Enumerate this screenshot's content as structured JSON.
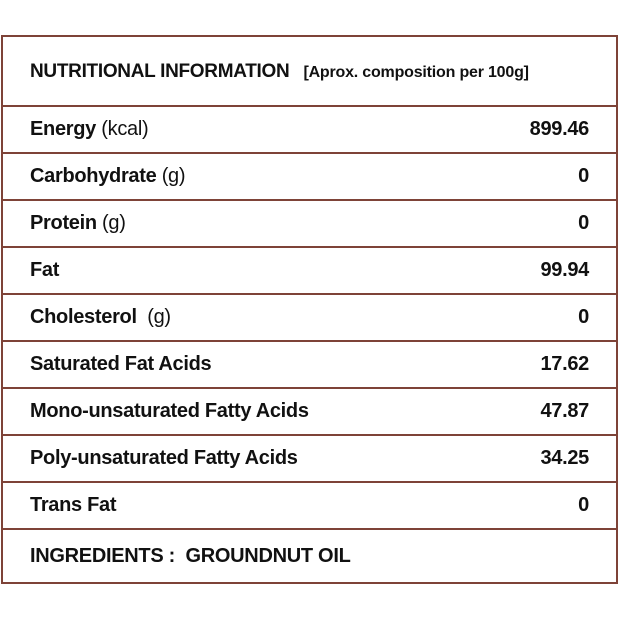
{
  "header": {
    "title": "NUTRITIONAL INFORMATION",
    "note": "[Aprox. composition per 100g]"
  },
  "rows": [
    {
      "label": "Energy",
      "unit": " (kcal)",
      "value": "899.46"
    },
    {
      "label": "Carbohydrate",
      "unit": " (g)",
      "value": "0"
    },
    {
      "label": "Protein",
      "unit": " (g)",
      "value": "0"
    },
    {
      "label": "Fat",
      "unit": "",
      "value": "99.94"
    },
    {
      "label": "Cholesterol",
      "unit": "  (g)",
      "value": "0"
    },
    {
      "label": "Saturated Fat Acids",
      "unit": "",
      "value": "17.62"
    },
    {
      "label": "Mono-unsaturated Fatty Acids",
      "unit": "",
      "value": "47.87"
    },
    {
      "label": "Poly-unsaturated Fatty Acids",
      "unit": "",
      "value": "34.25"
    },
    {
      "label": "Trans Fat",
      "unit": "",
      "value": "0"
    }
  ],
  "footer": {
    "ingredients": "INGREDIENTS :  GROUNDNUT OIL"
  },
  "colors": {
    "border": "#7e4338",
    "text": "#111111"
  }
}
